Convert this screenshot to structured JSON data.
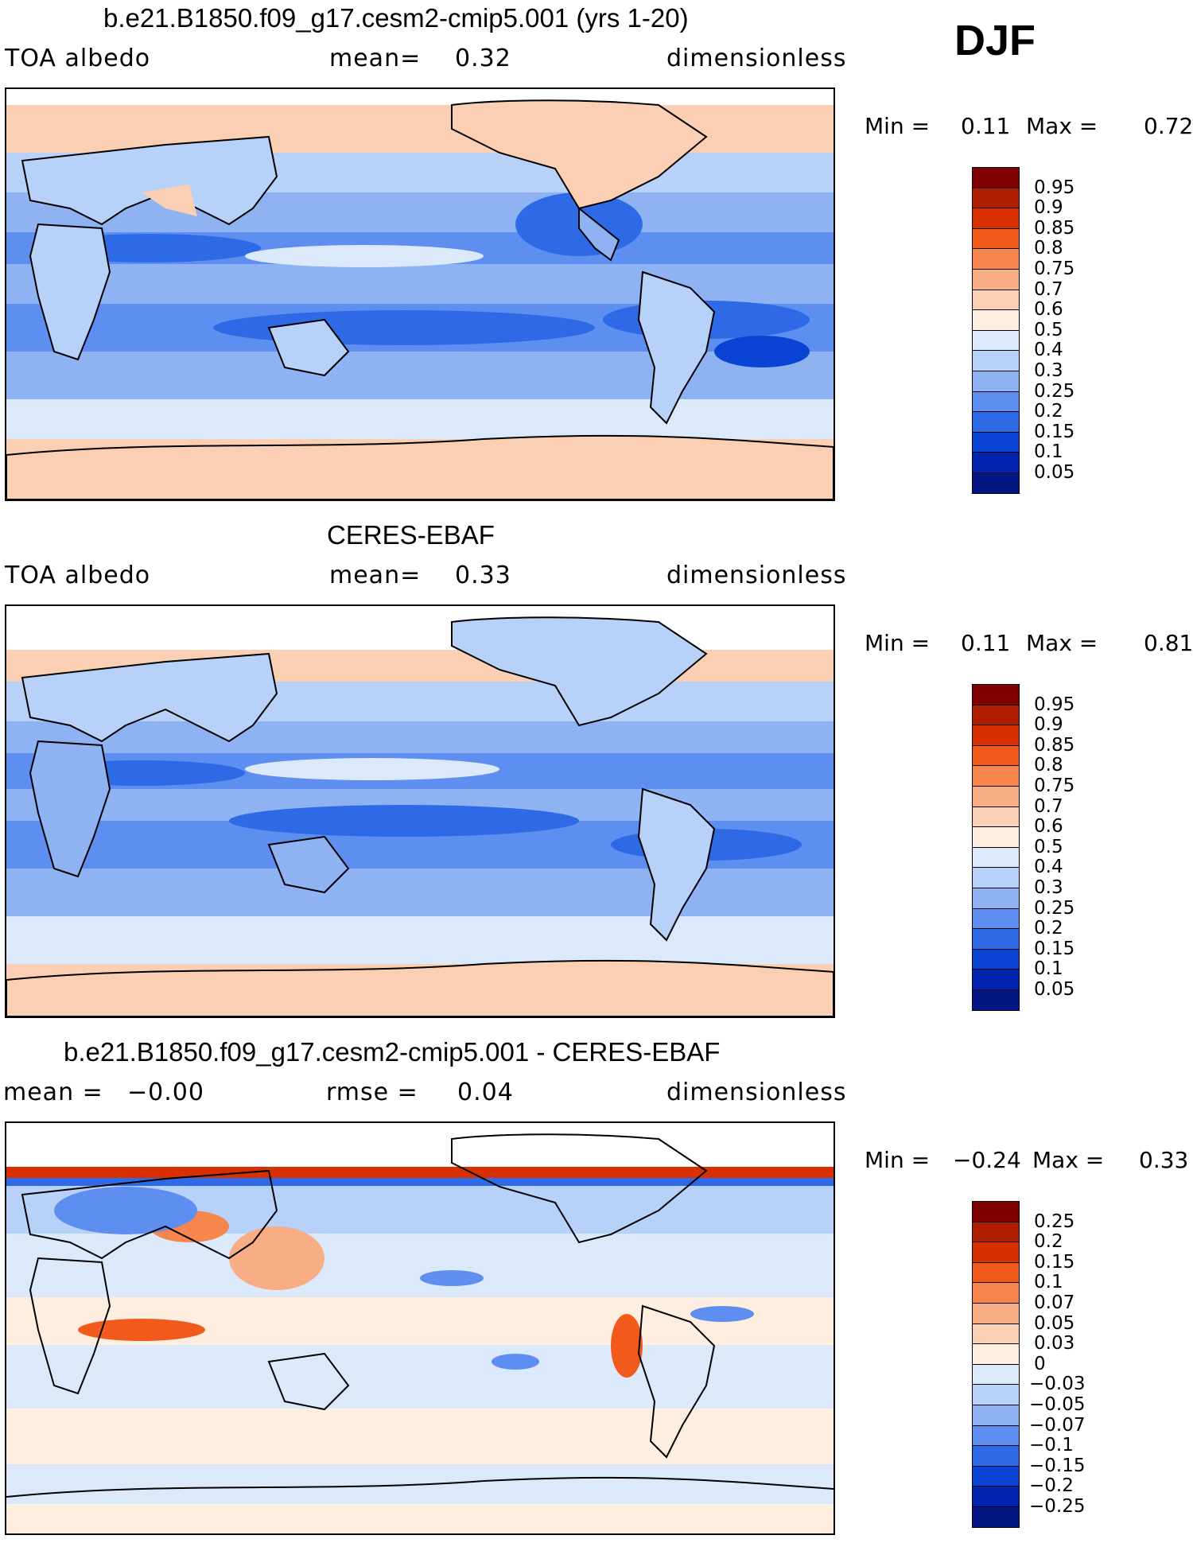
{
  "season": "DJF",
  "panels": [
    {
      "title": "b.e21.B1850.f09_g17.cesm2-cmip5.001 (yrs 1-20)",
      "left": "TOA albedo",
      "mid_label": "mean=",
      "mid_value": "0.32",
      "right": "dimensionless",
      "min_label": "Min =",
      "min_value": "0.11",
      "max_label": "Max =",
      "max_value": "0.72",
      "kind": "model"
    },
    {
      "title": "CERES-EBAF",
      "left": "TOA albedo",
      "mid_label": "mean=",
      "mid_value": "0.33",
      "right": "dimensionless",
      "min_label": "Min =",
      "min_value": "0.11",
      "max_label": "Max =",
      "max_value": "0.81",
      "kind": "obs"
    },
    {
      "title": "b.e21.B1850.f09_g17.cesm2-cmip5.001 - CERES-EBAF",
      "left": "mean =",
      "left_value": "−0.00",
      "mid_label": "rmse =",
      "mid_value": "0.04",
      "right": "dimensionless",
      "min_label": "Min =",
      "min_value": "−0.24",
      "max_label": "Max =",
      "max_value": "0.33",
      "kind": "diff"
    }
  ],
  "colorbars": {
    "albedo": {
      "labels": [
        "0.95",
        "0.9",
        "0.85",
        "0.8",
        "0.75",
        "0.7",
        "0.6",
        "0.5",
        "0.4",
        "0.3",
        "0.25",
        "0.2",
        "0.15",
        "0.1",
        "0.05"
      ],
      "colors": [
        "#7f0000",
        "#b01e00",
        "#d83000",
        "#f25a1c",
        "#f7864d",
        "#f9ad85",
        "#fbcfb3",
        "#fdeee0",
        "#dbe9fb",
        "#b8d1f8",
        "#8fb2f2",
        "#5e8ff0",
        "#2f6ae6",
        "#0a44d4",
        "#0222b0",
        "#041684"
      ]
    },
    "diff": {
      "labels": [
        "0.25",
        "0.2",
        "0.15",
        "0.1",
        "0.07",
        "0.05",
        "0.03",
        "0",
        "−0.03",
        "−0.05",
        "−0.07",
        "−0.1",
        "−0.15",
        "−0.2",
        "−0.25"
      ],
      "colors": [
        "#7f0000",
        "#b01e00",
        "#d83000",
        "#f25a1c",
        "#f7864d",
        "#f9ad85",
        "#fbcfb3",
        "#fdeee0",
        "#dbe9fb",
        "#b8d1f8",
        "#8fb2f2",
        "#5e8ff0",
        "#2f6ae6",
        "#0a44d4",
        "#0222b0",
        "#041684"
      ]
    }
  }
}
